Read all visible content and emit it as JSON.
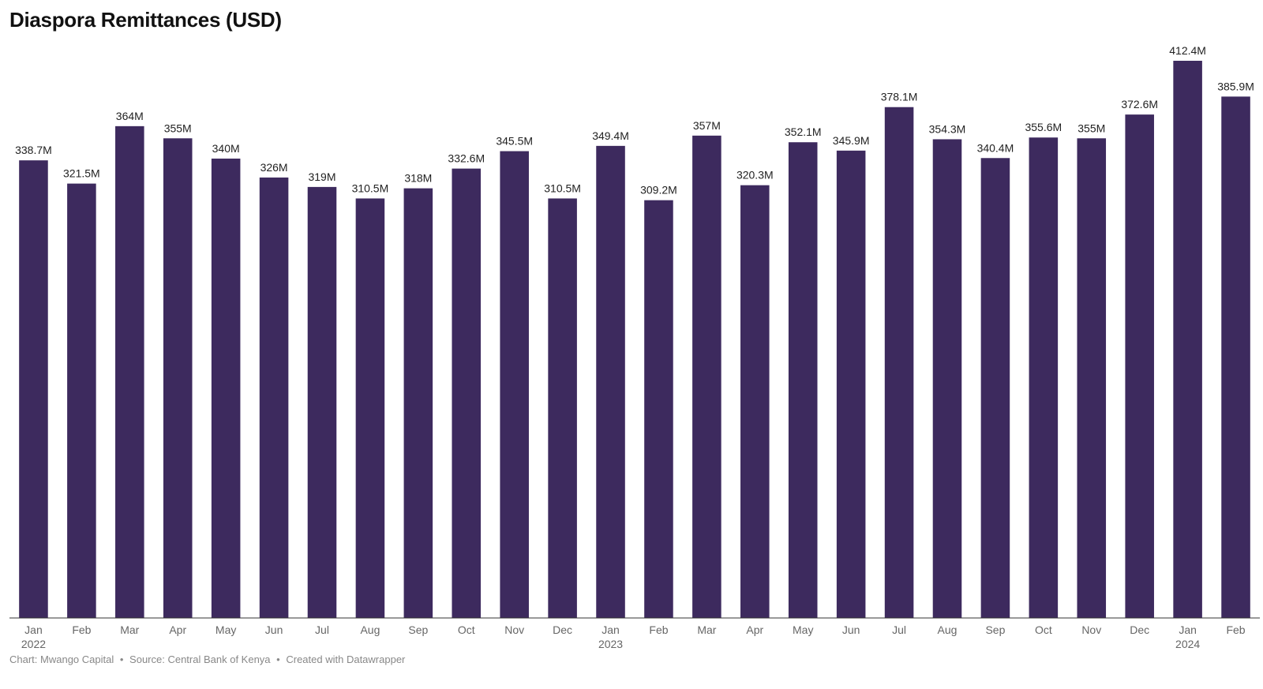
{
  "chart_data": {
    "type": "bar",
    "title": "Diaspora Remittances (USD)",
    "xlabel": "",
    "ylabel": "",
    "ylim": [
      0,
      412.4
    ],
    "grid": false,
    "legend": "none",
    "bar_color": "#3d2a5e",
    "unit_suffix": "M",
    "categories": [
      "Jan",
      "Feb",
      "Mar",
      "Apr",
      "May",
      "Jun",
      "Jul",
      "Aug",
      "Sep",
      "Oct",
      "Nov",
      "Dec",
      "Jan",
      "Feb",
      "Mar",
      "Apr",
      "May",
      "Jun",
      "Jul",
      "Aug",
      "Sep",
      "Oct",
      "Nov",
      "Dec",
      "Jan",
      "Feb"
    ],
    "year_labels": [
      "2022",
      "",
      "",
      "",
      "",
      "",
      "",
      "",
      "",
      "",
      "",
      "",
      "2023",
      "",
      "",
      "",
      "",
      "",
      "",
      "",
      "",
      "",
      "",
      "",
      "2024",
      ""
    ],
    "values": [
      338.7,
      321.5,
      364,
      355,
      340,
      326,
      319,
      310.5,
      318,
      332.6,
      345.5,
      310.5,
      349.4,
      309.2,
      357,
      320.3,
      352.1,
      345.9,
      378.1,
      354.3,
      340.4,
      355.6,
      355,
      372.6,
      412.4,
      385.9
    ],
    "value_labels": [
      "338.7M",
      "321.5M",
      "364M",
      "355M",
      "340M",
      "326M",
      "319M",
      "310.5M",
      "318M",
      "332.6M",
      "345.5M",
      "310.5M",
      "349.4M",
      "309.2M",
      "357M",
      "320.3M",
      "352.1M",
      "345.9M",
      "378.1M",
      "354.3M",
      "340.4M",
      "355.6M",
      "355M",
      "372.6M",
      "412.4M",
      "385.9M"
    ]
  },
  "footer": {
    "chart_by": "Chart: Mwango Capital",
    "source": "Source: Central Bank of Kenya",
    "created_with": "Created with Datawrapper",
    "separator": "•"
  }
}
